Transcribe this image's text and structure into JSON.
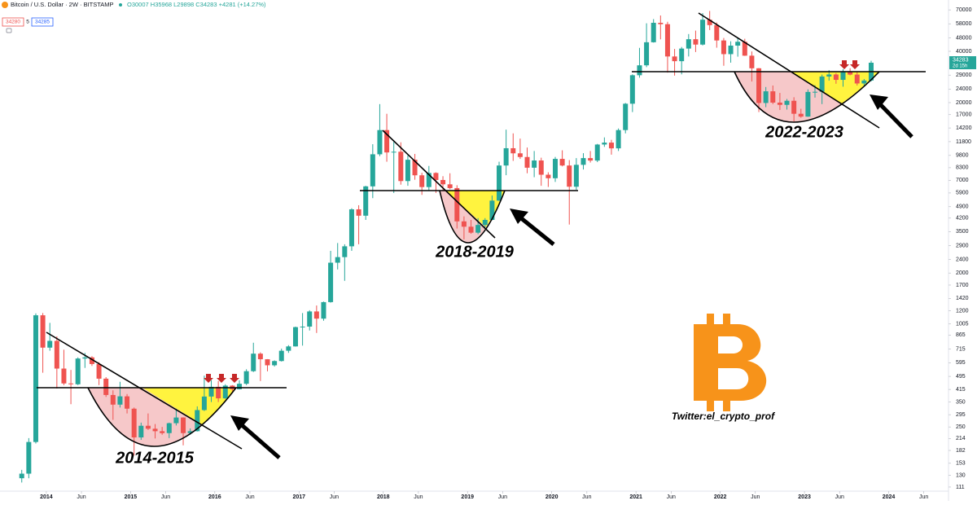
{
  "chart_data": {
    "type": "candlestick",
    "title": "Bitcoin / U.S. Dollar · 2W · BITSTAMP",
    "ohlc_legend": "O30007 H35968 L29898 C34283 +4281 (+14.27%)",
    "bid": 34280,
    "spread": 5,
    "ask": 34285,
    "last_price": 34283,
    "countdown": "2d 15h",
    "up_color": "#26a69a",
    "down_color": "#ef5350",
    "log_scale": true,
    "grid": false,
    "ylim": [
      105,
      80000
    ],
    "yticks": [
      111,
      130,
      153,
      182,
      214,
      250,
      295,
      350,
      415,
      495,
      595,
      715,
      865,
      1005,
      1200,
      1420,
      1700,
      2000,
      2400,
      2900,
      3500,
      4200,
      4900,
      5900,
      7000,
      8300,
      9800,
      11800,
      14200,
      17000,
      20000,
      24000,
      29000,
      40000,
      48000,
      58000,
      70000
    ],
    "xlim": [
      2013.45,
      2024.71
    ],
    "xticks": [
      2014,
      {
        "value": 2014.417,
        "label": "Jun"
      },
      2015,
      {
        "value": 2015.417,
        "label": "Jun"
      },
      2016,
      {
        "value": 2016.417,
        "label": "Jun"
      },
      2017,
      {
        "value": 2017.417,
        "label": "Jun"
      },
      2018,
      {
        "value": 2018.417,
        "label": "Jun"
      },
      2019,
      {
        "value": 2019.417,
        "label": "Jun"
      },
      2020,
      {
        "value": 2020.417,
        "label": "Jun"
      },
      2021,
      {
        "value": 2021.417,
        "label": "Jun"
      },
      2022,
      {
        "value": 2022.417,
        "label": "Jun"
      },
      2023,
      {
        "value": 2023.417,
        "label": "Jun"
      },
      2024,
      {
        "value": 2024.417,
        "label": "Jun"
      }
    ],
    "annotations": [
      "2014-2015",
      "2018-2019",
      "2022-2023"
    ],
    "watermark": "Twitter:el_crypto_prof",
    "x": [
      "2013-09",
      "2013-10",
      "2013-11",
      "2013-12",
      "2014-01",
      "2014-02",
      "2014-03",
      "2014-04",
      "2014-05",
      "2014-06",
      "2014-07",
      "2014-08",
      "2014-09",
      "2014-10",
      "2014-11",
      "2014-12",
      "2015-01",
      "2015-02",
      "2015-03",
      "2015-04",
      "2015-05",
      "2015-06",
      "2015-07",
      "2015-08",
      "2015-09",
      "2015-10",
      "2015-11",
      "2015-12",
      "2016-01",
      "2016-02",
      "2016-03",
      "2016-04",
      "2016-05",
      "2016-06",
      "2016-07",
      "2016-08",
      "2016-09",
      "2016-10",
      "2016-11",
      "2016-12",
      "2017-01",
      "2017-02",
      "2017-03",
      "2017-04",
      "2017-05",
      "2017-06",
      "2017-07",
      "2017-08",
      "2017-09",
      "2017-10",
      "2017-11",
      "2017-12",
      "2018-01",
      "2018-02",
      "2018-03",
      "2018-04",
      "2018-05",
      "2018-06",
      "2018-07",
      "2018-08",
      "2018-09",
      "2018-10",
      "2018-11",
      "2018-12",
      "2019-01",
      "2019-02",
      "2019-03",
      "2019-04",
      "2019-05",
      "2019-06",
      "2019-07",
      "2019-08",
      "2019-09",
      "2019-10",
      "2019-11",
      "2019-12",
      "2020-01",
      "2020-02",
      "2020-03",
      "2020-04",
      "2020-05",
      "2020-06",
      "2020-07",
      "2020-08",
      "2020-09",
      "2020-10",
      "2020-11",
      "2020-12",
      "2021-01",
      "2021-02",
      "2021-03",
      "2021-04",
      "2021-05",
      "2021-06",
      "2021-07",
      "2021-08",
      "2021-09",
      "2021-10",
      "2021-11",
      "2021-12",
      "2022-01",
      "2022-02",
      "2022-03",
      "2022-04",
      "2022-05",
      "2022-06",
      "2022-07",
      "2022-08",
      "2022-09",
      "2022-10",
      "2022-11",
      "2022-12",
      "2023-01",
      "2023-02",
      "2023-03",
      "2023-04",
      "2023-05",
      "2023-06",
      "2023-07",
      "2023-08",
      "2023-09",
      "2023-10"
    ],
    "open": [
      125,
      133,
      204,
      1130,
      730,
      800,
      550,
      450,
      445,
      630,
      640,
      585,
      480,
      385,
      338,
      378,
      320,
      217,
      254,
      244,
      236,
      230,
      263,
      284,
      230,
      236,
      314,
      377,
      430,
      368,
      437,
      416,
      448,
      531,
      673,
      624,
      575,
      609,
      700,
      742,
      963,
      970,
      1190,
      1080,
      1350,
      2300,
      2480,
      2870,
      4730,
      4340,
      6450,
      9950,
      13800,
      10200,
      10300,
      6930,
      9240,
      7490,
      6390,
      7730,
      7030,
      6630,
      6300,
      4020,
      3740,
      3450,
      3830,
      4100,
      5320,
      8550,
      10800,
      10080,
      9590,
      8300,
      9150,
      7550,
      7200,
      9350,
      8550,
      6420,
      8630,
      9450,
      9140,
      11350,
      11650,
      10780,
      13800,
      19700,
      28950,
      33100,
      45200,
      58800,
      57700,
      37300,
      35000,
      41500,
      47100,
      43800,
      61300,
      57000,
      46300,
      38500,
      43200,
      45500,
      37700,
      31800,
      19900,
      23300,
      20000,
      19400,
      20500,
      17200,
      16550,
      23100,
      23150,
      28450,
      29250,
      27200,
      30450,
      29200,
      25900,
      26960
    ],
    "high": [
      140,
      215,
      1160,
      1165,
      1020,
      850,
      710,
      540,
      640,
      680,
      650,
      600,
      490,
      410,
      460,
      390,
      325,
      265,
      300,
      260,
      250,
      265,
      320,
      285,
      245,
      330,
      500,
      470,
      465,
      445,
      440,
      470,
      545,
      780,
      685,
      625,
      615,
      720,
      755,
      970,
      1165,
      1210,
      1290,
      1360,
      2700,
      3000,
      2950,
      4800,
      5000,
      6500,
      11400,
      19600,
      17200,
      11800,
      11700,
      9800,
      10000,
      7750,
      8500,
      7800,
      7400,
      7700,
      6550,
      4300,
      4100,
      4200,
      4200,
      5700,
      9000,
      13880,
      13200,
      12300,
      10900,
      10400,
      9500,
      7800,
      9600,
      10500,
      9200,
      9450,
      10100,
      10400,
      11450,
      12500,
      12100,
      14100,
      19900,
      29300,
      41900,
      58400,
      61800,
      64900,
      59600,
      41300,
      42400,
      50500,
      52900,
      67000,
      69000,
      59000,
      47900,
      45800,
      48200,
      47400,
      39900,
      31900,
      24700,
      25200,
      22800,
      21000,
      21500,
      18400,
      23900,
      25300,
      29200,
      31000,
      29800,
      31400,
      31800,
      30200,
      27500,
      35200
    ],
    "low": [
      118,
      125,
      200,
      520,
      700,
      420,
      440,
      340,
      440,
      555,
      570,
      440,
      375,
      275,
      325,
      300,
      170,
      210,
      240,
      214,
      225,
      215,
      255,
      195,
      225,
      235,
      310,
      350,
      350,
      365,
      405,
      415,
      440,
      525,
      465,
      530,
      565,
      605,
      680,
      740,
      750,
      920,
      890,
      1050,
      1340,
      2100,
      1800,
      2700,
      2950,
      4100,
      5500,
      9700,
      9000,
      5900,
      6600,
      6500,
      7050,
      5750,
      6100,
      5900,
      6100,
      6200,
      3650,
      3150,
      3400,
      3380,
      3700,
      4080,
      5300,
      7500,
      9100,
      9350,
      7700,
      7300,
      6500,
      6400,
      6850,
      8450,
      3850,
      6150,
      8100,
      8900,
      8950,
      11000,
      9900,
      10400,
      13200,
      17600,
      28000,
      32300,
      45000,
      47000,
      30000,
      28800,
      29300,
      37300,
      39600,
      43300,
      53300,
      42000,
      32900,
      34300,
      37200,
      37600,
      26600,
      17600,
      18800,
      19600,
      18100,
      18200,
      15500,
      16300,
      16500,
      21400,
      19600,
      26900,
      25800,
      24800,
      28900,
      25200,
      24900,
      26600
    ],
    "close": [
      133,
      204,
      1130,
      730,
      800,
      550,
      450,
      445,
      630,
      640,
      585,
      480,
      385,
      338,
      378,
      320,
      217,
      254,
      244,
      236,
      230,
      263,
      284,
      230,
      236,
      314,
      377,
      430,
      368,
      437,
      416,
      448,
      531,
      673,
      624,
      575,
      609,
      700,
      742,
      963,
      970,
      1190,
      1080,
      1350,
      2300,
      2480,
      2870,
      4730,
      4340,
      6450,
      9950,
      13800,
      10200,
      10300,
      6930,
      9240,
      7490,
      6390,
      7730,
      7030,
      6630,
      6300,
      4020,
      3740,
      3450,
      3830,
      4100,
      5320,
      8550,
      10800,
      10080,
      9590,
      8300,
      9150,
      7550,
      7200,
      9350,
      8550,
      6420,
      8630,
      9450,
      9140,
      11350,
      11650,
      10780,
      13800,
      19700,
      28950,
      33100,
      45200,
      58800,
      57700,
      37300,
      35000,
      41500,
      47100,
      43800,
      61300,
      57000,
      46300,
      38500,
      43200,
      45500,
      37700,
      31800,
      19900,
      23300,
      20000,
      19400,
      20500,
      17200,
      16550,
      23100,
      23150,
      28450,
      29250,
      27200,
      30450,
      29200,
      25900,
      26960,
      34283
    ]
  }
}
